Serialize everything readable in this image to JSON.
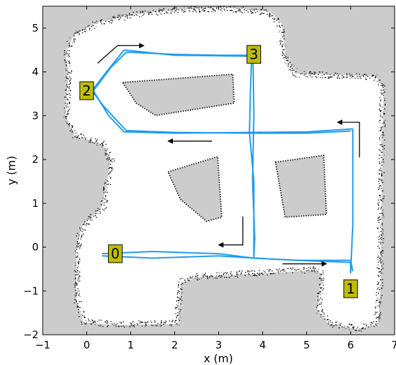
{
  "chart_data": {
    "type": "map-trajectory",
    "xlabel": "x (m)",
    "ylabel": "y (m)",
    "xlim": [
      -1,
      7
    ],
    "ylim": [
      -2,
      5.5
    ],
    "x_ticks": [
      -1,
      0,
      1,
      2,
      3,
      4,
      5,
      6,
      7
    ],
    "x_tick_labels": [
      "−1",
      "0",
      "1",
      "2",
      "3",
      "4",
      "5",
      "6",
      "7"
    ],
    "y_ticks": [
      -2,
      -1,
      0,
      1,
      2,
      3,
      4,
      5
    ],
    "y_tick_labels": [
      "−2",
      "−1",
      "0",
      "1",
      "2",
      "3",
      "4",
      "5"
    ],
    "grid": false,
    "colors": {
      "background": "#cccccc",
      "free_space": "#ffffff",
      "obstacle_points": "#000000",
      "trajectory": "#1e9bf0",
      "marker_fill": "#bdbd00",
      "arrow": "#000000"
    },
    "markers": [
      {
        "label": "0",
        "x": 0.65,
        "y": -0.15
      },
      {
        "label": "1",
        "x": 6.0,
        "y": -0.95
      },
      {
        "label": "2",
        "x": 0.0,
        "y": 3.57
      },
      {
        "label": "3",
        "x": 3.8,
        "y": 4.4
      }
    ],
    "trajectory_paths": [
      [
        [
          0.35,
          -0.15
        ],
        [
          1.5,
          -0.1
        ],
        [
          3.0,
          -0.15
        ],
        [
          3.8,
          -0.25
        ],
        [
          4.8,
          -0.3
        ],
        [
          6.0,
          -0.35
        ],
        [
          6.0,
          -0.6
        ]
      ],
      [
        [
          0.35,
          -0.2
        ],
        [
          1.5,
          -0.25
        ],
        [
          3.0,
          -0.2
        ],
        [
          3.8,
          -0.25
        ],
        [
          4.8,
          -0.3
        ],
        [
          6.0,
          -0.3
        ],
        [
          6.05,
          -0.55
        ]
      ],
      [
        [
          6.0,
          -0.55
        ],
        [
          6.05,
          0.5
        ],
        [
          6.05,
          1.5
        ],
        [
          6.05,
          2.7
        ]
      ],
      [
        [
          6.05,
          2.7
        ],
        [
          5.0,
          2.63
        ],
        [
          3.7,
          2.62
        ],
        [
          2.0,
          2.6
        ],
        [
          0.85,
          2.63
        ]
      ],
      [
        [
          0.85,
          2.63
        ],
        [
          0.5,
          3.0
        ],
        [
          0.15,
          3.57
        ],
        [
          0.55,
          4.1
        ],
        [
          0.9,
          4.45
        ]
      ],
      [
        [
          0.9,
          4.45
        ],
        [
          2.0,
          4.4
        ],
        [
          3.0,
          4.38
        ],
        [
          3.7,
          4.38
        ]
      ],
      [
        [
          3.75,
          4.38
        ],
        [
          3.72,
          3.5
        ],
        [
          3.7,
          2.62
        ],
        [
          3.8,
          1.5
        ],
        [
          3.8,
          0.5
        ],
        [
          3.8,
          -0.25
        ]
      ],
      [
        [
          6.0,
          2.65
        ],
        [
          5.0,
          2.6
        ],
        [
          3.7,
          2.6
        ],
        [
          2.0,
          2.62
        ],
        [
          0.9,
          2.66
        ]
      ],
      [
        [
          0.9,
          2.66
        ],
        [
          0.4,
          3.2
        ],
        [
          0.12,
          3.57
        ],
        [
          0.45,
          4.0
        ],
        [
          0.85,
          4.5
        ]
      ],
      [
        [
          0.85,
          4.5
        ],
        [
          2.0,
          4.38
        ],
        [
          3.7,
          4.36
        ]
      ],
      [
        [
          3.78,
          4.36
        ],
        [
          3.8,
          3.0
        ],
        [
          3.77,
          1.5
        ],
        [
          3.82,
          0.2
        ],
        [
          3.8,
          -0.2
        ]
      ]
    ],
    "arrows": [
      [
        [
          0.25,
          4.2
        ],
        [
          0.7,
          4.6
        ],
        [
          1.3,
          4.6
        ]
      ],
      [
        [
          2.85,
          2.42
        ],
        [
          1.85,
          2.42
        ]
      ],
      [
        [
          6.2,
          2.05
        ],
        [
          6.2,
          2.85
        ],
        [
          5.7,
          2.85
        ]
      ],
      [
        [
          3.55,
          0.7
        ],
        [
          3.55,
          0.05
        ],
        [
          3.0,
          0.05
        ]
      ],
      [
        [
          4.45,
          -0.38
        ],
        [
          5.45,
          -0.38
        ]
      ]
    ]
  }
}
